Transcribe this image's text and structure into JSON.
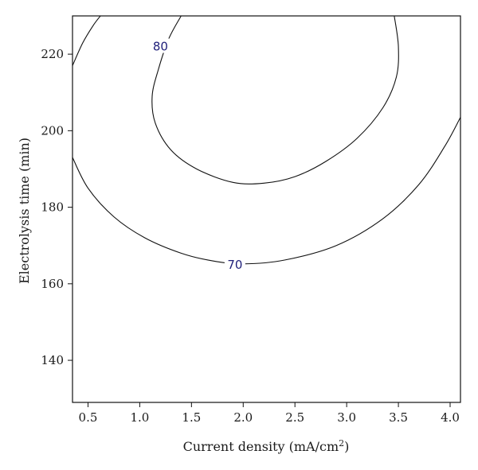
{
  "chart_data": {
    "type": "contour",
    "title": "",
    "xlabel": "Current density (mA/cm",
    "xlabel_superscript": "2",
    "xlabel_suffix": ")",
    "ylabel": "Electrolysis time (min)",
    "xlim": [
      0.35,
      4.1
    ],
    "ylim": [
      129,
      230
    ],
    "xticks": [
      0.5,
      1.0,
      1.5,
      2.0,
      2.5,
      3.0,
      3.5,
      4.0
    ],
    "xtick_labels": [
      "0.5",
      "1.0",
      "1.5",
      "2.0",
      "2.5",
      "3.0",
      "3.5",
      "4.0"
    ],
    "yticks": [
      140,
      160,
      180,
      200,
      220
    ],
    "ytick_labels": [
      "140",
      "160",
      "180",
      "200",
      "220"
    ],
    "label_color": "#1f1f7a",
    "line_color": "#111111",
    "contours": [
      {
        "level": "80",
        "label_at": [
          1.2,
          222
        ],
        "points": [
          [
            1.4,
            230
          ],
          [
            1.28,
            224
          ],
          [
            1.18,
            216
          ],
          [
            1.12,
            209
          ],
          [
            1.15,
            202
          ],
          [
            1.3,
            195
          ],
          [
            1.55,
            190
          ],
          [
            1.9,
            186.5
          ],
          [
            2.2,
            186.3
          ],
          [
            2.5,
            188
          ],
          [
            2.8,
            192
          ],
          [
            3.1,
            198
          ],
          [
            3.35,
            206
          ],
          [
            3.48,
            214
          ],
          [
            3.5,
            222
          ],
          [
            3.46,
            230
          ]
        ]
      },
      {
        "level": "70",
        "label_at": [
          1.92,
          165
        ],
        "points": [
          [
            0.35,
            193
          ],
          [
            0.5,
            185
          ],
          [
            0.75,
            177.5
          ],
          [
            1.05,
            172
          ],
          [
            1.4,
            168
          ],
          [
            1.7,
            166
          ],
          [
            2.0,
            165.2
          ],
          [
            2.4,
            166.2
          ],
          [
            2.9,
            170
          ],
          [
            3.35,
            177
          ],
          [
            3.7,
            186
          ],
          [
            3.95,
            196
          ],
          [
            4.1,
            203.5
          ]
        ]
      },
      {
        "level": "",
        "label_at": null,
        "points": [
          [
            0.35,
            217
          ],
          [
            0.45,
            223
          ],
          [
            0.55,
            227.5
          ],
          [
            0.62,
            230
          ]
        ]
      }
    ]
  }
}
